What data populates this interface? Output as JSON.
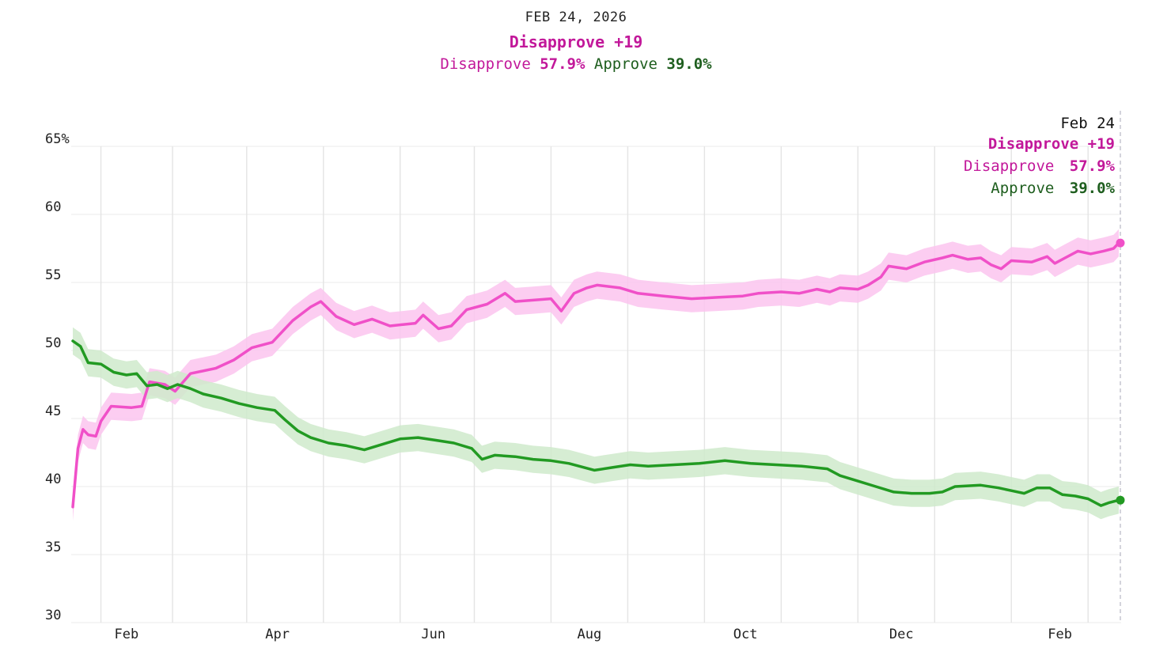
{
  "header": {
    "date": "FEB 24, 2026",
    "margin_label": "Disapprove +19",
    "disapprove_label": "Disapprove",
    "disapprove_value": "57.9%",
    "approve_label": "Approve",
    "approve_value": "39.0%"
  },
  "tooltip": {
    "date": "Feb 24",
    "margin_label": "Disapprove +19",
    "disapprove_label": "Disapprove",
    "disapprove_value": "57.9%",
    "approve_label": "Approve",
    "approve_value": "39.0%"
  },
  "colors": {
    "disapprove_line": "#f050c8",
    "disapprove_band": "#fbc4ee",
    "disapprove_text": "#c2189a",
    "approve_line": "#229a22",
    "approve_band": "#cfeacb",
    "approve_text": "#1e5e1e"
  },
  "chart_data": {
    "type": "line",
    "ylim": [
      30,
      65
    ],
    "xlim": [
      "2025-01-11",
      "2026-02-24"
    ],
    "y_ticks": [
      "65%",
      "60",
      "55",
      "50",
      "45",
      "40",
      "35",
      "30"
    ],
    "y_tick_values": [
      65,
      60,
      55,
      50,
      45,
      40,
      35,
      30
    ],
    "x_ticks": [
      {
        "date": "2025-02-01",
        "label": "Feb"
      },
      {
        "date": "2025-04-01",
        "label": "Apr"
      },
      {
        "date": "2025-06-01",
        "label": "Jun"
      },
      {
        "date": "2025-08-01",
        "label": "Aug"
      },
      {
        "date": "2025-10-01",
        "label": "Oct"
      },
      {
        "date": "2025-12-01",
        "label": "Dec"
      },
      {
        "date": "2026-02-01",
        "label": "Feb"
      }
    ],
    "gridline_dates": [
      "2025-01-22",
      "2025-02-19",
      "2025-03-20",
      "2025-04-19",
      "2025-05-19",
      "2025-06-17",
      "2025-07-17",
      "2025-08-16",
      "2025-09-15",
      "2025-10-15",
      "2025-11-14",
      "2025-12-14",
      "2026-01-13",
      "2026-02-12"
    ],
    "grid": true,
    "band_halfwidth": 1.0,
    "series": [
      {
        "name": "Disapprove",
        "points": [
          [
            "2025-01-11",
            38.5
          ],
          [
            "2025-01-13",
            42.8
          ],
          [
            "2025-01-15",
            44.2
          ],
          [
            "2025-01-17",
            43.8
          ],
          [
            "2025-01-20",
            43.7
          ],
          [
            "2025-01-22",
            44.8
          ],
          [
            "2025-01-26",
            45.9
          ],
          [
            "2025-02-03",
            45.8
          ],
          [
            "2025-02-07",
            45.9
          ],
          [
            "2025-02-10",
            47.7
          ],
          [
            "2025-02-16",
            47.5
          ],
          [
            "2025-02-20",
            47.0
          ],
          [
            "2025-02-26",
            48.3
          ],
          [
            "2025-03-08",
            48.7
          ],
          [
            "2025-03-15",
            49.3
          ],
          [
            "2025-03-22",
            50.2
          ],
          [
            "2025-03-30",
            50.6
          ],
          [
            "2025-04-03",
            51.4
          ],
          [
            "2025-04-07",
            52.2
          ],
          [
            "2025-04-14",
            53.2
          ],
          [
            "2025-04-18",
            53.6
          ],
          [
            "2025-04-24",
            52.5
          ],
          [
            "2025-05-01",
            51.9
          ],
          [
            "2025-05-08",
            52.3
          ],
          [
            "2025-05-15",
            51.8
          ],
          [
            "2025-05-25",
            52.0
          ],
          [
            "2025-05-28",
            52.6
          ],
          [
            "2025-06-03",
            51.6
          ],
          [
            "2025-06-08",
            51.8
          ],
          [
            "2025-06-14",
            53.0
          ],
          [
            "2025-06-22",
            53.4
          ],
          [
            "2025-06-29",
            54.2
          ],
          [
            "2025-07-03",
            53.6
          ],
          [
            "2025-07-10",
            53.7
          ],
          [
            "2025-07-17",
            53.8
          ],
          [
            "2025-07-21",
            52.9
          ],
          [
            "2025-07-26",
            54.2
          ],
          [
            "2025-07-31",
            54.6
          ],
          [
            "2025-08-04",
            54.8
          ],
          [
            "2025-08-13",
            54.6
          ],
          [
            "2025-08-20",
            54.2
          ],
          [
            "2025-08-30",
            54.0
          ],
          [
            "2025-09-10",
            53.8
          ],
          [
            "2025-09-20",
            53.9
          ],
          [
            "2025-09-30",
            54.0
          ],
          [
            "2025-10-06",
            54.2
          ],
          [
            "2025-10-15",
            54.3
          ],
          [
            "2025-10-22",
            54.2
          ],
          [
            "2025-10-29",
            54.5
          ],
          [
            "2025-11-03",
            54.3
          ],
          [
            "2025-11-07",
            54.6
          ],
          [
            "2025-11-14",
            54.5
          ],
          [
            "2025-11-18",
            54.8
          ],
          [
            "2025-11-23",
            55.4
          ],
          [
            "2025-11-26",
            56.2
          ],
          [
            "2025-12-03",
            56.0
          ],
          [
            "2025-12-10",
            56.5
          ],
          [
            "2025-12-17",
            56.8
          ],
          [
            "2025-12-21",
            57.0
          ],
          [
            "2025-12-27",
            56.7
          ],
          [
            "2026-01-01",
            56.8
          ],
          [
            "2026-01-05",
            56.3
          ],
          [
            "2026-01-09",
            56.0
          ],
          [
            "2026-01-13",
            56.6
          ],
          [
            "2026-01-21",
            56.5
          ],
          [
            "2026-01-27",
            56.9
          ],
          [
            "2026-01-30",
            56.4
          ],
          [
            "2026-02-03",
            56.8
          ],
          [
            "2026-02-08",
            57.3
          ],
          [
            "2026-02-13",
            57.1
          ],
          [
            "2026-02-18",
            57.3
          ],
          [
            "2026-02-22",
            57.5
          ],
          [
            "2026-02-24",
            57.9
          ]
        ]
      },
      {
        "name": "Approve",
        "points": [
          [
            "2025-01-11",
            50.7
          ],
          [
            "2025-01-14",
            50.3
          ],
          [
            "2025-01-17",
            49.1
          ],
          [
            "2025-01-22",
            49.0
          ],
          [
            "2025-01-27",
            48.4
          ],
          [
            "2025-02-01",
            48.2
          ],
          [
            "2025-02-05",
            48.3
          ],
          [
            "2025-02-09",
            47.4
          ],
          [
            "2025-02-13",
            47.5
          ],
          [
            "2025-02-17",
            47.2
          ],
          [
            "2025-02-21",
            47.5
          ],
          [
            "2025-02-26",
            47.2
          ],
          [
            "2025-03-03",
            46.8
          ],
          [
            "2025-03-10",
            46.5
          ],
          [
            "2025-03-17",
            46.1
          ],
          [
            "2025-03-24",
            45.8
          ],
          [
            "2025-03-31",
            45.6
          ],
          [
            "2025-04-04",
            44.9
          ],
          [
            "2025-04-09",
            44.1
          ],
          [
            "2025-04-14",
            43.6
          ],
          [
            "2025-04-21",
            43.2
          ],
          [
            "2025-04-28",
            43.0
          ],
          [
            "2025-05-05",
            42.7
          ],
          [
            "2025-05-12",
            43.1
          ],
          [
            "2025-05-19",
            43.5
          ],
          [
            "2025-05-26",
            43.6
          ],
          [
            "2025-06-02",
            43.4
          ],
          [
            "2025-06-09",
            43.2
          ],
          [
            "2025-06-16",
            42.8
          ],
          [
            "2025-06-20",
            42.0
          ],
          [
            "2025-06-25",
            42.3
          ],
          [
            "2025-07-03",
            42.2
          ],
          [
            "2025-07-10",
            42.0
          ],
          [
            "2025-07-17",
            41.9
          ],
          [
            "2025-07-24",
            41.7
          ],
          [
            "2025-08-03",
            41.2
          ],
          [
            "2025-08-10",
            41.4
          ],
          [
            "2025-08-17",
            41.6
          ],
          [
            "2025-08-24",
            41.5
          ],
          [
            "2025-09-03",
            41.6
          ],
          [
            "2025-09-13",
            41.7
          ],
          [
            "2025-09-23",
            41.9
          ],
          [
            "2025-10-03",
            41.7
          ],
          [
            "2025-10-13",
            41.6
          ],
          [
            "2025-10-23",
            41.5
          ],
          [
            "2025-11-02",
            41.3
          ],
          [
            "2025-11-07",
            40.8
          ],
          [
            "2025-11-14",
            40.4
          ],
          [
            "2025-11-21",
            40.0
          ],
          [
            "2025-11-28",
            39.6
          ],
          [
            "2025-12-05",
            39.5
          ],
          [
            "2025-12-12",
            39.5
          ],
          [
            "2025-12-17",
            39.6
          ],
          [
            "2025-12-22",
            40.0
          ],
          [
            "2026-01-01",
            40.1
          ],
          [
            "2026-01-08",
            39.9
          ],
          [
            "2026-01-13",
            39.7
          ],
          [
            "2026-01-18",
            39.5
          ],
          [
            "2026-01-23",
            39.9
          ],
          [
            "2026-01-28",
            39.9
          ],
          [
            "2026-02-02",
            39.4
          ],
          [
            "2026-02-07",
            39.3
          ],
          [
            "2026-02-12",
            39.1
          ],
          [
            "2026-02-17",
            38.6
          ],
          [
            "2026-02-20",
            38.8
          ],
          [
            "2026-02-24",
            39.0
          ]
        ]
      }
    ],
    "end_markers": [
      {
        "series": "Disapprove",
        "date": "2026-02-24",
        "value": 57.9
      },
      {
        "series": "Approve",
        "date": "2026-02-24",
        "value": 39.0
      }
    ]
  }
}
